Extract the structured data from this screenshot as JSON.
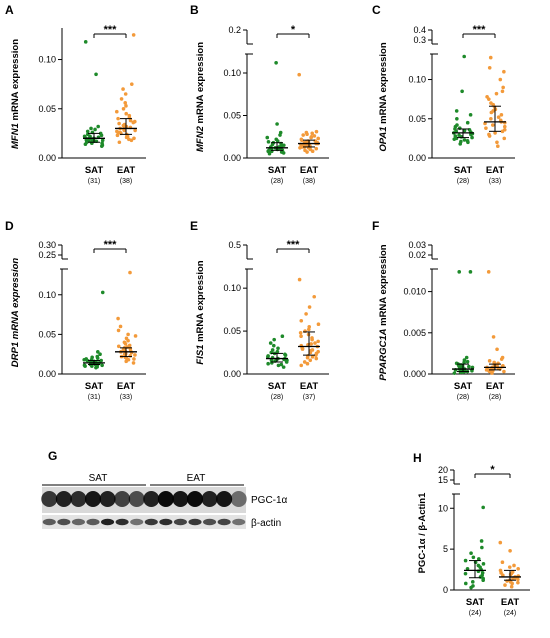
{
  "colors": {
    "sat": "#1e8a2a",
    "eat": "#f39a3a",
    "axis": "#000000"
  },
  "chart_data": [
    {
      "type": "scatter",
      "panel": "A",
      "ylabel_gene": "MFN1",
      "ylabel_rest": " mRNA expression",
      "ylabel_italic_all": false,
      "yticks": [
        "0.00",
        "0.05",
        "0.10"
      ],
      "ytick_values": [
        0,
        0.05,
        0.1
      ],
      "ylim": [
        0,
        0.13
      ],
      "break_ticks": [],
      "categories": [
        "SAT",
        "EAT"
      ],
      "n_labels": [
        "(31)",
        "(38)"
      ],
      "significance": "***",
      "series": [
        {
          "values": [
            0.012,
            0.013,
            0.014,
            0.015,
            0.015,
            0.016,
            0.016,
            0.017,
            0.017,
            0.018,
            0.018,
            0.018,
            0.019,
            0.019,
            0.02,
            0.02,
            0.02,
            0.021,
            0.021,
            0.022,
            0.022,
            0.023,
            0.024,
            0.025,
            0.026,
            0.027,
            0.029,
            0.03,
            0.032,
            0.085,
            0.118
          ],
          "median": 0.02,
          "iqr": [
            0.016,
            0.025
          ]
        },
        {
          "values": [
            0.016,
            0.018,
            0.019,
            0.02,
            0.021,
            0.022,
            0.023,
            0.024,
            0.025,
            0.026,
            0.026,
            0.027,
            0.028,
            0.028,
            0.029,
            0.03,
            0.03,
            0.031,
            0.032,
            0.033,
            0.034,
            0.035,
            0.036,
            0.037,
            0.038,
            0.04,
            0.041,
            0.043,
            0.045,
            0.047,
            0.05,
            0.053,
            0.056,
            0.06,
            0.065,
            0.07,
            0.075,
            0.125
          ],
          "median": 0.03,
          "iqr": [
            0.024,
            0.04
          ]
        }
      ]
    },
    {
      "type": "scatter",
      "panel": "B",
      "ylabel_gene": "MFN2",
      "ylabel_rest": " mRNA expression",
      "ylabel_italic_all": false,
      "yticks": [
        "0.00",
        "0.05",
        "0.10"
      ],
      "ytick_values": [
        0,
        0.05,
        0.1
      ],
      "ylim": [
        0,
        0.12
      ],
      "break_ticks": [
        "0.2"
      ],
      "categories": [
        "SAT",
        "EAT"
      ],
      "n_labels": [
        "(28)",
        "(38)"
      ],
      "significance": "*",
      "series": [
        {
          "values": [
            0.005,
            0.006,
            0.007,
            0.008,
            0.008,
            0.009,
            0.009,
            0.01,
            0.01,
            0.011,
            0.011,
            0.012,
            0.012,
            0.013,
            0.013,
            0.014,
            0.015,
            0.016,
            0.017,
            0.018,
            0.019,
            0.02,
            0.022,
            0.024,
            0.027,
            0.03,
            0.04,
            0.112
          ],
          "median": 0.012,
          "iqr": [
            0.009,
            0.018
          ]
        },
        {
          "values": [
            0.007,
            0.008,
            0.009,
            0.01,
            0.011,
            0.012,
            0.012,
            0.013,
            0.013,
            0.014,
            0.014,
            0.015,
            0.015,
            0.016,
            0.016,
            0.017,
            0.017,
            0.018,
            0.018,
            0.019,
            0.019,
            0.02,
            0.021,
            0.022,
            0.023,
            0.024,
            0.025,
            0.026,
            0.027,
            0.028,
            0.029,
            0.03,
            0.031,
            0.012,
            0.014,
            0.02,
            0.016,
            0.098
          ],
          "median": 0.017,
          "iqr": [
            0.013,
            0.021
          ]
        }
      ]
    },
    {
      "type": "scatter",
      "panel": "C",
      "ylabel_gene": "OPA1",
      "ylabel_rest": " mRNA expression",
      "ylabel_italic_all": false,
      "yticks": [
        "0.00",
        "0.05",
        "0.10"
      ],
      "ytick_values": [
        0,
        0.05,
        0.1
      ],
      "ylim": [
        0,
        0.13
      ],
      "break_ticks": [
        "0.4",
        "0.3"
      ],
      "categories": [
        "SAT",
        "EAT"
      ],
      "n_labels": [
        "(28)",
        "(33)"
      ],
      "significance": "***",
      "series": [
        {
          "values": [
            0.018,
            0.02,
            0.021,
            0.022,
            0.023,
            0.024,
            0.025,
            0.026,
            0.027,
            0.028,
            0.029,
            0.03,
            0.031,
            0.032,
            0.033,
            0.034,
            0.035,
            0.036,
            0.037,
            0.038,
            0.04,
            0.042,
            0.045,
            0.05,
            0.055,
            0.06,
            0.085,
            0.13
          ],
          "median": 0.032,
          "iqr": [
            0.026,
            0.037
          ]
        },
        {
          "values": [
            0.015,
            0.02,
            0.025,
            0.028,
            0.03,
            0.032,
            0.034,
            0.036,
            0.038,
            0.04,
            0.042,
            0.044,
            0.045,
            0.046,
            0.048,
            0.05,
            0.052,
            0.055,
            0.058,
            0.06,
            0.062,
            0.065,
            0.068,
            0.07,
            0.075,
            0.078,
            0.082,
            0.085,
            0.09,
            0.1,
            0.11,
            0.115,
            0.128
          ],
          "median": 0.046,
          "iqr": [
            0.034,
            0.066
          ]
        }
      ]
    },
    {
      "type": "scatter",
      "panel": "D",
      "ylabel_gene": "DRP1",
      "ylabel_rest": " mRNA expression",
      "ylabel_italic_all": true,
      "yticks": [
        "0.00",
        "0.05",
        "0.10"
      ],
      "ytick_values": [
        0,
        0.05,
        0.1
      ],
      "ylim": [
        0,
        0.13
      ],
      "break_ticks": [
        "0.30",
        "0.25"
      ],
      "categories": [
        "SAT",
        "EAT"
      ],
      "n_labels": [
        "(31)",
        "(33)"
      ],
      "significance": "***",
      "series": [
        {
          "values": [
            0.008,
            0.009,
            0.01,
            0.01,
            0.011,
            0.011,
            0.012,
            0.012,
            0.012,
            0.013,
            0.013,
            0.013,
            0.014,
            0.014,
            0.014,
            0.015,
            0.015,
            0.015,
            0.016,
            0.016,
            0.017,
            0.017,
            0.018,
            0.018,
            0.019,
            0.02,
            0.021,
            0.022,
            0.025,
            0.028,
            0.103
          ],
          "median": 0.014,
          "iqr": [
            0.012,
            0.017
          ]
        },
        {
          "values": [
            0.014,
            0.016,
            0.018,
            0.019,
            0.02,
            0.021,
            0.022,
            0.023,
            0.024,
            0.025,
            0.025,
            0.026,
            0.027,
            0.028,
            0.028,
            0.029,
            0.03,
            0.031,
            0.032,
            0.033,
            0.034,
            0.035,
            0.036,
            0.038,
            0.04,
            0.042,
            0.045,
            0.048,
            0.05,
            0.055,
            0.06,
            0.07,
            0.128
          ],
          "median": 0.028,
          "iqr": [
            0.022,
            0.033
          ]
        }
      ]
    },
    {
      "type": "scatter",
      "panel": "E",
      "ylabel_gene": "FIS1",
      "ylabel_rest": " mRNA expression",
      "ylabel_italic_all": false,
      "yticks": [
        "0.00",
        "0.05",
        "0.10"
      ],
      "ytick_values": [
        0,
        0.05,
        0.1
      ],
      "ylim": [
        0,
        0.12
      ],
      "break_ticks": [
        "0.5"
      ],
      "categories": [
        "SAT",
        "EAT"
      ],
      "n_labels": [
        "(28)",
        "(37)"
      ],
      "significance": "***",
      "series": [
        {
          "values": [
            0.008,
            0.01,
            0.011,
            0.012,
            0.013,
            0.014,
            0.015,
            0.015,
            0.016,
            0.016,
            0.017,
            0.017,
            0.018,
            0.018,
            0.019,
            0.02,
            0.021,
            0.022,
            0.023,
            0.024,
            0.025,
            0.026,
            0.028,
            0.03,
            0.033,
            0.036,
            0.04,
            0.044
          ],
          "median": 0.018,
          "iqr": [
            0.014,
            0.024
          ]
        },
        {
          "values": [
            0.01,
            0.012,
            0.014,
            0.016,
            0.018,
            0.019,
            0.02,
            0.021,
            0.022,
            0.024,
            0.025,
            0.026,
            0.027,
            0.028,
            0.029,
            0.03,
            0.031,
            0.032,
            0.033,
            0.034,
            0.035,
            0.036,
            0.038,
            0.04,
            0.042,
            0.044,
            0.046,
            0.048,
            0.05,
            0.052,
            0.055,
            0.058,
            0.062,
            0.07,
            0.078,
            0.09,
            0.11
          ],
          "median": 0.032,
          "iqr": [
            0.022,
            0.049
          ]
        }
      ]
    },
    {
      "type": "scatter",
      "panel": "F",
      "ylabel_gene": "PPARGC1A",
      "ylabel_rest": " mRNA expression",
      "ylabel_italic_all": false,
      "yticks": [
        "0.000",
        "0.005",
        "0.010"
      ],
      "ytick_values": [
        0,
        0.005,
        0.01
      ],
      "ylim": [
        0,
        0.0125
      ],
      "break_ticks": [
        "0.03",
        "0.02"
      ],
      "categories": [
        "SAT",
        "EAT"
      ],
      "n_labels": [
        "(28)",
        "(28)"
      ],
      "significance": "",
      "series": [
        {
          "values": [
            0.0001,
            0.0002,
            0.0002,
            0.0003,
            0.0003,
            0.0004,
            0.0004,
            0.0005,
            0.0005,
            0.0005,
            0.0006,
            0.0006,
            0.0007,
            0.0007,
            0.0008,
            0.0008,
            0.0009,
            0.001,
            0.001,
            0.0011,
            0.0012,
            0.0013,
            0.0014,
            0.0015,
            0.0017,
            0.002,
            0.0124,
            0.0124
          ],
          "median": 0.0006,
          "iqr": [
            0.0003,
            0.0012
          ]
        },
        {
          "values": [
            0.0001,
            0.0002,
            0.0003,
            0.0003,
            0.0004,
            0.0004,
            0.0005,
            0.0005,
            0.0006,
            0.0006,
            0.0007,
            0.0007,
            0.0008,
            0.0008,
            0.0009,
            0.0009,
            0.001,
            0.001,
            0.0011,
            0.0012,
            0.0013,
            0.0014,
            0.0016,
            0.0018,
            0.002,
            0.003,
            0.0045,
            0.0124
          ],
          "median": 0.0008,
          "iqr": [
            0.0005,
            0.0012
          ]
        }
      ]
    },
    {
      "type": "scatter",
      "panel": "H",
      "ylabel_text": "PGC-1α / β-Actin1",
      "yticks": [
        "0",
        "5",
        "10"
      ],
      "ytick_values": [
        0,
        5,
        10
      ],
      "ylim": [
        0,
        11.5
      ],
      "break_ticks": [
        "20",
        "15"
      ],
      "categories": [
        "SAT",
        "EAT"
      ],
      "n_labels": [
        "(24)",
        "(24)"
      ],
      "significance": "*",
      "series": [
        {
          "values": [
            0.3,
            0.5,
            0.8,
            1.0,
            1.2,
            1.4,
            1.6,
            1.8,
            2.0,
            2.1,
            2.3,
            2.5,
            2.6,
            2.8,
            3.0,
            3.2,
            3.4,
            3.6,
            3.8,
            4.0,
            4.5,
            5.2,
            6.0,
            10.1
          ],
          "median": 2.4,
          "iqr": [
            1.5,
            3.6
          ]
        },
        {
          "values": [
            0.4,
            0.6,
            0.8,
            0.9,
            1.0,
            1.1,
            1.2,
            1.3,
            1.4,
            1.5,
            1.6,
            1.7,
            1.8,
            1.9,
            2.0,
            2.1,
            2.2,
            2.4,
            2.6,
            2.8,
            3.0,
            3.4,
            4.8,
            5.8
          ],
          "median": 1.6,
          "iqr": [
            1.2,
            2.4
          ]
        }
      ]
    }
  ],
  "blot": {
    "panel": "G",
    "sat_label": "SAT",
    "eat_label": "EAT",
    "band1_label": "PGC-1α",
    "band2_label": "β-actin",
    "lanes": 14,
    "band1_intensity": [
      0.75,
      0.85,
      0.8,
      0.9,
      0.85,
      0.7,
      0.65,
      0.85,
      0.95,
      0.9,
      0.95,
      0.85,
      0.9,
      0.5
    ],
    "band2_intensity": [
      0.6,
      0.65,
      0.55,
      0.6,
      0.85,
      0.8,
      0.5,
      0.75,
      0.8,
      0.7,
      0.75,
      0.65,
      0.7,
      0.5
    ]
  }
}
